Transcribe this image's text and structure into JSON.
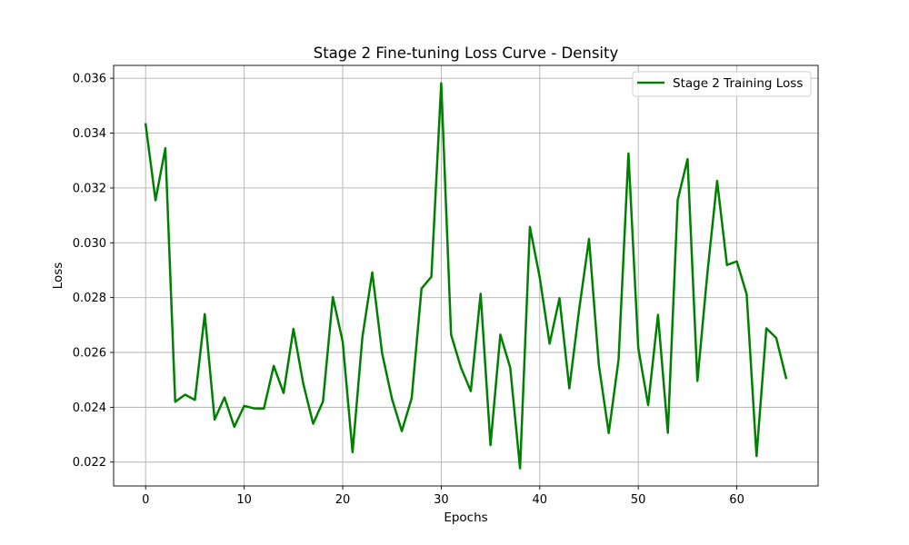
{
  "chart_data": {
    "type": "line",
    "title": "Stage 2 Fine-tuning Loss Curve - Density",
    "xlabel": "Epochs",
    "ylabel": "Loss",
    "xlim": [
      -3.25,
      68.25
    ],
    "ylim": [
      0.02113,
      0.03647
    ],
    "xticks": [
      0,
      10,
      20,
      30,
      40,
      50,
      60
    ],
    "xtick_labels": [
      "0",
      "10",
      "20",
      "30",
      "40",
      "50",
      "60"
    ],
    "yticks": [
      0.022,
      0.024,
      0.026,
      0.028,
      0.03,
      0.032,
      0.034,
      0.036
    ],
    "ytick_labels": [
      "0.022",
      "0.024",
      "0.026",
      "0.028",
      "0.030",
      "0.032",
      "0.034",
      "0.036"
    ],
    "grid": true,
    "legend_position": "upper right",
    "colors": {
      "series": "#008000"
    },
    "series": [
      {
        "name": "Stage 2 Training Loss",
        "x": [
          0,
          1,
          2,
          3,
          4,
          5,
          6,
          7,
          8,
          9,
          10,
          11,
          12,
          13,
          14,
          15,
          16,
          17,
          18,
          19,
          20,
          21,
          22,
          23,
          24,
          25,
          26,
          27,
          28,
          29,
          30,
          31,
          32,
          33,
          34,
          35,
          36,
          37,
          38,
          39,
          40,
          41,
          42,
          43,
          44,
          45,
          46,
          47,
          48,
          49,
          50,
          51,
          52,
          53,
          54,
          55,
          56,
          57,
          58,
          59,
          60,
          61,
          62,
          63,
          64,
          65
        ],
        "values": [
          0.03432,
          0.03155,
          0.03345,
          0.0242,
          0.02446,
          0.02427,
          0.0274,
          0.02355,
          0.02436,
          0.02329,
          0.02405,
          0.02396,
          0.02395,
          0.02551,
          0.02452,
          0.02686,
          0.02486,
          0.0234,
          0.02421,
          0.02802,
          0.02639,
          0.02236,
          0.02656,
          0.02892,
          0.02597,
          0.02431,
          0.02313,
          0.02433,
          0.02833,
          0.02876,
          0.03582,
          0.02665,
          0.02545,
          0.02459,
          0.02814,
          0.02262,
          0.02665,
          0.02545,
          0.02177,
          0.03058,
          0.02873,
          0.02632,
          0.02798,
          0.02469,
          0.02757,
          0.03014,
          0.02553,
          0.02306,
          0.02574,
          0.03326,
          0.02616,
          0.02408,
          0.02737,
          0.02307,
          0.03156,
          0.03305,
          0.02496,
          0.02884,
          0.03226,
          0.02919,
          0.02932,
          0.02812,
          0.02222,
          0.02688,
          0.02653,
          0.02507
        ]
      }
    ]
  }
}
